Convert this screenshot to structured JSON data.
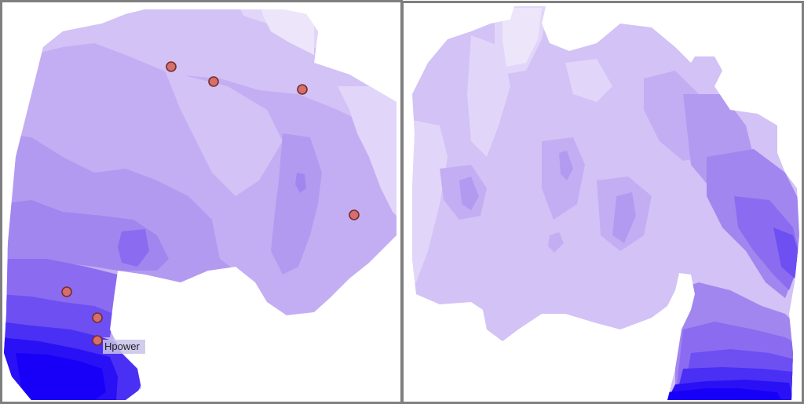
{
  "colors": {
    "level1": "#ede6fb",
    "level2": "#e1d6f9",
    "level3": "#d2c2f6",
    "level4": "#c3aef3",
    "level5": "#b39af1",
    "level6": "#a186ef",
    "level7": "#8b6cf0",
    "level8": "#6d4ff2",
    "level9": "#4a2ff4",
    "level10": "#2a10f5",
    "level11": "#1800f8",
    "marker_fill": "#d4706b",
    "marker_stroke": "#7a2b2b",
    "label_bg": "#c9c3e9"
  },
  "left_map": {
    "markers": [
      {
        "id": "m1"
      },
      {
        "id": "m2"
      },
      {
        "id": "m3"
      },
      {
        "id": "m4"
      },
      {
        "id": "m5"
      },
      {
        "id": "m6"
      },
      {
        "id": "m7",
        "label": "Hpower"
      }
    ]
  }
}
